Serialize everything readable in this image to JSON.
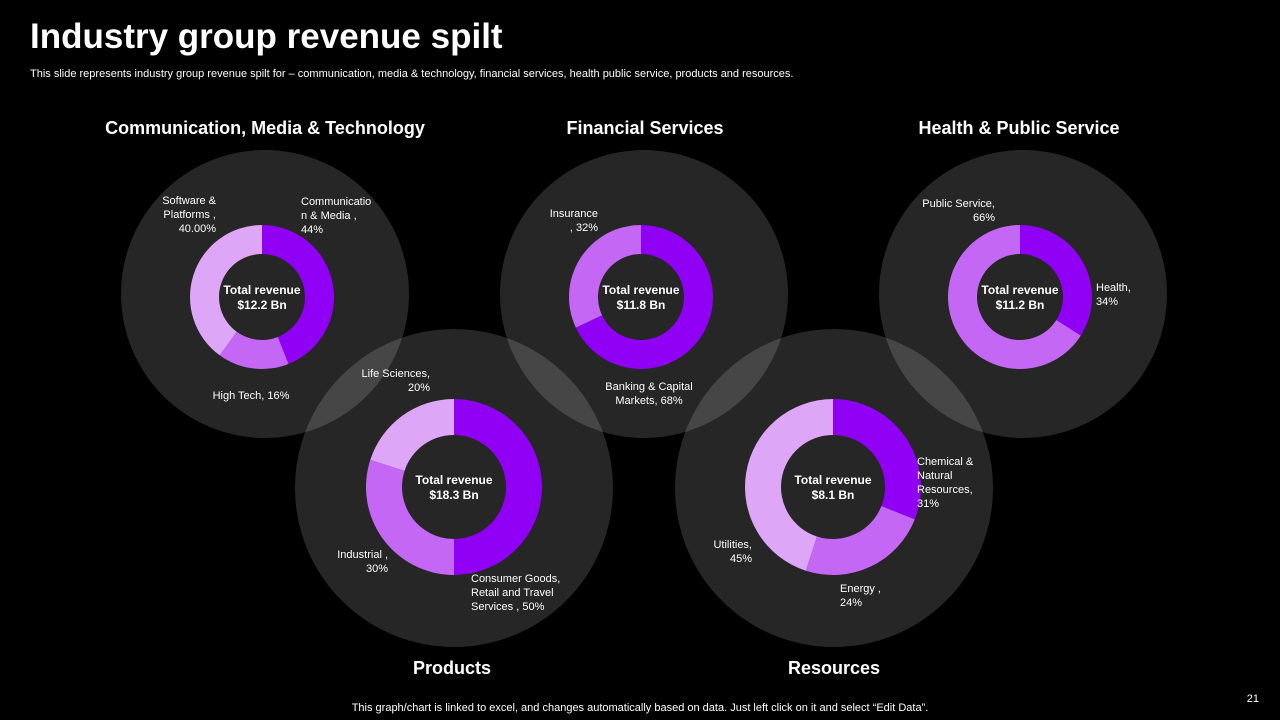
{
  "slide": {
    "title": "Industry group revenue spilt",
    "subtitle": "This slide represents industry group revenue spilt for – communication, media & technology, financial services, health  public service, products and resources.",
    "footer_note": "This graph/chart is linked to excel,  and changes automatically based on data. Just left click on it and select “Edit Data”.",
    "page_number": "21"
  },
  "colors": {
    "background": "#000000",
    "bubble": "#262626",
    "dark_purple": "#9000f5",
    "mid_purple": "#c567f5",
    "light_purple": "#dea6f7",
    "text": "#ffffff"
  },
  "chart_data": [
    {
      "type": "pie",
      "variant": "donut",
      "title": "Communication, Media & Technology",
      "center_label": [
        "Total revenue",
        "$12.2 Bn"
      ],
      "slices": [
        {
          "label_lines": [
            "Communicatio",
            "n & Media ,",
            "44%"
          ],
          "value": 44,
          "color": "#9000f5"
        },
        {
          "label_lines": [
            "High Tech, 16%"
          ],
          "value": 16,
          "color": "#c567f5"
        },
        {
          "label_lines": [
            "Software &",
            "Platforms ,",
            "40.00%"
          ],
          "value": 40,
          "color": "#dea6f7"
        }
      ]
    },
    {
      "type": "pie",
      "variant": "donut",
      "title": "Financial Services",
      "center_label": [
        "Total revenue",
        "$11.8 Bn"
      ],
      "slices": [
        {
          "label_lines": [
            "Banking & Capital",
            "Markets, 68%"
          ],
          "value": 68,
          "color": "#9000f5"
        },
        {
          "label_lines": [
            "Insurance",
            ", 32%"
          ],
          "value": 32,
          "color": "#c567f5"
        }
      ]
    },
    {
      "type": "pie",
      "variant": "donut",
      "title": "Health & Public Service",
      "center_label": [
        "Total revenue",
        "$11.2 Bn"
      ],
      "slices": [
        {
          "label_lines": [
            "Health,",
            "34%"
          ],
          "value": 34,
          "color": "#9000f5"
        },
        {
          "label_lines": [
            "Public Service,",
            "66%"
          ],
          "value": 66,
          "color": "#c567f5"
        }
      ]
    },
    {
      "type": "pie",
      "variant": "donut",
      "title": "Products",
      "center_label": [
        "Total revenue",
        "$18.3 Bn"
      ],
      "slices": [
        {
          "label_lines": [
            "Consumer Goods,",
            "Retail and Travel",
            "Services , 50%"
          ],
          "value": 50,
          "color": "#9000f5"
        },
        {
          "label_lines": [
            "Industrial ,",
            "30%"
          ],
          "value": 30,
          "color": "#c567f5"
        },
        {
          "label_lines": [
            "Life Sciences,",
            "20%"
          ],
          "value": 20,
          "color": "#dea6f7"
        }
      ]
    },
    {
      "type": "pie",
      "variant": "donut",
      "title": "Resources",
      "center_label": [
        "Total revenue",
        "$8.1 Bn"
      ],
      "slices": [
        {
          "label_lines": [
            "Chemical &",
            "Natural",
            "Resources,",
            "31%"
          ],
          "value": 31,
          "color": "#9000f5"
        },
        {
          "label_lines": [
            "Energy ,",
            "24%"
          ],
          "value": 24,
          "color": "#c567f5"
        },
        {
          "label_lines": [
            "Utilities,",
            "45%"
          ],
          "value": 45,
          "color": "#dea6f7"
        }
      ]
    }
  ]
}
